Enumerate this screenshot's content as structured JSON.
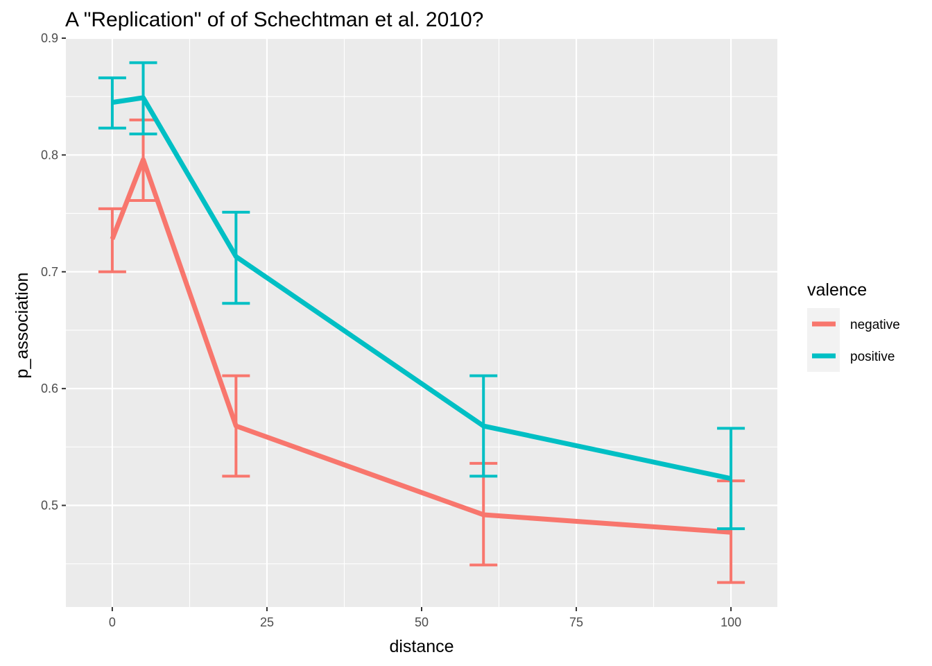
{
  "chart_data": {
    "type": "line",
    "title": "A \"Replication\" of of Schechtman et al. 2010?",
    "xlabel": "distance",
    "ylabel": "p_association",
    "x_ticks": [
      0,
      25,
      50,
      75,
      100
    ],
    "y_ticks": [
      0.5,
      0.6,
      0.7,
      0.8,
      0.9
    ],
    "xlim": [
      -7.5,
      107.5
    ],
    "ylim": [
      0.413,
      0.9
    ],
    "grid": true,
    "legend": {
      "title": "valence",
      "position": "right"
    },
    "x": [
      0,
      5,
      20,
      60,
      100
    ],
    "series": [
      {
        "name": "negative",
        "color": "#F8766D",
        "values": [
          0.728,
          0.796,
          0.568,
          0.492,
          0.477
        ],
        "lower": [
          0.7,
          0.761,
          0.525,
          0.449,
          0.434
        ],
        "upper": [
          0.754,
          0.83,
          0.611,
          0.536,
          0.521
        ]
      },
      {
        "name": "positive",
        "color": "#00BFC4",
        "values": [
          0.845,
          0.849,
          0.713,
          0.568,
          0.523
        ],
        "lower": [
          0.823,
          0.818,
          0.673,
          0.525,
          0.48
        ],
        "upper": [
          0.866,
          0.879,
          0.751,
          0.611,
          0.566
        ]
      }
    ]
  }
}
